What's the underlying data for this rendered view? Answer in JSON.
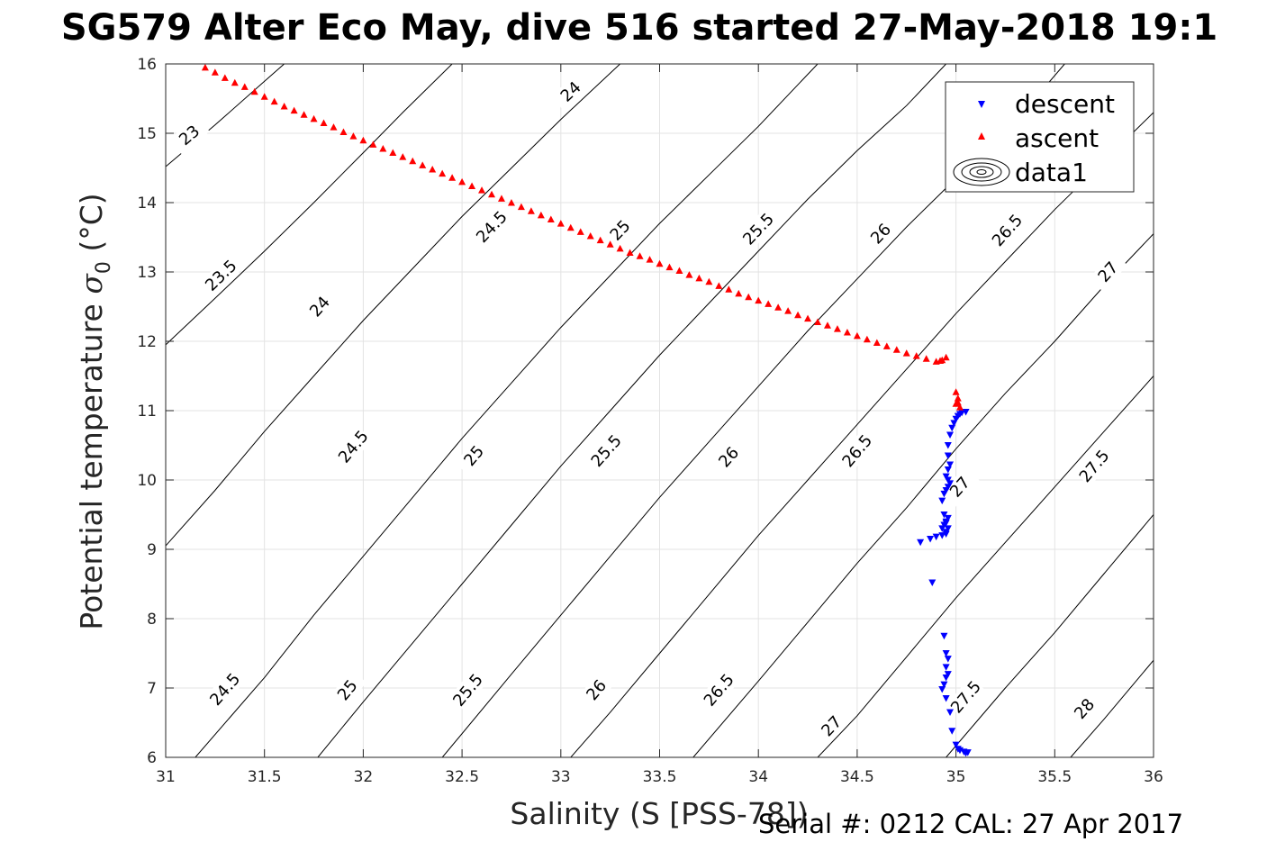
{
  "chart_data": {
    "type": "scatter",
    "title": "SG579 Alter Eco May, dive 516 started 27-May-2018 19:1",
    "xlabel": "Salinity (S [PSS-78])",
    "ylabel": "Potential temperature σ₀ (°C)",
    "ylabel_main": "Potential temperature ",
    "ylabel_sigma": "σ",
    "ylabel_sub": "0",
    "ylabel_unit": " (°C)",
    "xlim": [
      31,
      36
    ],
    "ylim": [
      6,
      16
    ],
    "xticks": [
      31,
      31.5,
      32,
      32.5,
      33,
      33.5,
      34,
      34.5,
      35,
      35.5,
      36
    ],
    "yticks": [
      6,
      7,
      8,
      9,
      10,
      11,
      12,
      13,
      14,
      15,
      16
    ],
    "grid": true,
    "legend_position": "top-right",
    "series": [
      {
        "name": "descent",
        "marker": "triangle-down",
        "color": "#0000ff",
        "x": [
          35.05,
          35.03,
          35.02,
          35.01,
          35.0,
          34.99,
          34.98,
          34.97,
          34.96,
          34.96,
          34.97,
          34.96,
          34.95,
          34.96,
          34.97,
          34.96,
          34.95,
          34.94,
          34.93,
          34.94,
          34.95,
          34.96,
          34.95,
          34.94,
          34.93,
          34.96,
          34.95,
          34.95,
          34.93,
          34.9,
          34.87,
          34.82,
          34.88,
          34.94,
          34.95,
          34.96,
          34.95,
          34.96,
          34.95,
          34.94,
          34.93,
          34.95,
          34.97,
          34.98,
          35.0,
          35.01,
          35.02,
          35.04,
          35.06,
          35.05
        ],
        "y": [
          10.98,
          10.97,
          10.95,
          10.92,
          10.88,
          10.82,
          10.75,
          10.65,
          10.5,
          10.35,
          10.22,
          10.15,
          10.05,
          10.0,
          9.95,
          9.9,
          9.85,
          9.8,
          9.7,
          9.5,
          9.4,
          9.45,
          9.38,
          9.35,
          9.3,
          9.3,
          9.25,
          9.22,
          9.2,
          9.18,
          9.15,
          9.1,
          8.52,
          7.75,
          7.5,
          7.42,
          7.3,
          7.2,
          7.15,
          7.05,
          6.98,
          6.85,
          6.65,
          6.38,
          6.18,
          6.12,
          6.1,
          6.08,
          6.07,
          6.06
        ]
      },
      {
        "name": "ascent",
        "marker": "triangle-up",
        "color": "#ff0000",
        "x": [
          31.2,
          31.25,
          31.3,
          31.35,
          31.4,
          31.45,
          31.5,
          31.55,
          31.6,
          31.65,
          31.7,
          31.75,
          31.8,
          31.85,
          31.9,
          31.95,
          32.0,
          32.05,
          32.1,
          32.15,
          32.2,
          32.25,
          32.3,
          32.35,
          32.4,
          32.45,
          32.5,
          32.55,
          32.6,
          32.65,
          32.7,
          32.75,
          32.8,
          32.85,
          32.9,
          32.95,
          33.0,
          33.05,
          33.1,
          33.15,
          33.2,
          33.25,
          33.3,
          33.35,
          33.4,
          33.45,
          33.5,
          33.55,
          33.6,
          33.65,
          33.7,
          33.75,
          33.8,
          33.85,
          33.9,
          33.95,
          34.0,
          34.05,
          34.1,
          34.15,
          34.2,
          34.25,
          34.3,
          34.35,
          34.4,
          34.45,
          34.5,
          34.55,
          34.6,
          34.65,
          34.7,
          34.75,
          34.8,
          34.85,
          34.9,
          34.93,
          34.95,
          34.92,
          35.0,
          35.01,
          35.0,
          35.02,
          35.01
        ],
        "y": [
          15.95,
          15.88,
          15.8,
          15.73,
          15.67,
          15.6,
          15.53,
          15.46,
          15.39,
          15.33,
          15.27,
          15.21,
          15.15,
          15.09,
          15.02,
          14.96,
          14.9,
          14.84,
          14.78,
          14.72,
          14.66,
          14.6,
          14.54,
          14.48,
          14.42,
          14.36,
          14.3,
          14.24,
          14.18,
          14.12,
          14.06,
          14.0,
          13.94,
          13.88,
          13.82,
          13.76,
          13.7,
          13.64,
          13.58,
          13.52,
          13.46,
          13.4,
          13.34,
          13.28,
          13.23,
          13.18,
          13.12,
          13.07,
          13.02,
          12.96,
          12.91,
          12.86,
          12.8,
          12.75,
          12.69,
          12.64,
          12.59,
          12.54,
          12.49,
          12.44,
          12.38,
          12.33,
          12.28,
          12.23,
          12.18,
          12.13,
          12.08,
          12.03,
          11.98,
          11.93,
          11.88,
          11.83,
          11.79,
          11.75,
          11.71,
          11.73,
          11.77,
          11.72,
          11.27,
          11.18,
          11.1,
          11.05,
          11.12
        ]
      },
      {
        "name": "data1",
        "type": "contour",
        "color": "#000000",
        "levels": [
          {
            "value": 23,
            "label": "23",
            "points": [
              [
                31.0,
                14.52
              ],
              [
                31.25,
                15.12
              ],
              [
                31.5,
                15.75
              ],
              [
                31.6,
                16.0
              ]
            ],
            "label_positions": [
              [
                31.12,
                14.97
              ]
            ]
          },
          {
            "value": 23.5,
            "label": "23.5",
            "points": [
              [
                31.0,
                11.95
              ],
              [
                31.25,
                12.62
              ],
              [
                31.5,
                13.3
              ],
              [
                31.75,
                14.0
              ],
              [
                32.0,
                14.72
              ],
              [
                32.2,
                15.3
              ],
              [
                32.45,
                16.0
              ]
            ],
            "label_positions": [
              [
                31.28,
                12.95
              ]
            ]
          },
          {
            "value": 24,
            "label": "24",
            "points": [
              [
                31.0,
                9.05
              ],
              [
                31.25,
                9.85
              ],
              [
                31.5,
                10.7
              ],
              [
                31.75,
                11.5
              ],
              [
                32.0,
                12.3
              ],
              [
                32.25,
                13.05
              ],
              [
                32.5,
                13.8
              ],
              [
                32.75,
                14.5
              ],
              [
                33.0,
                15.2
              ],
              [
                33.3,
                16.0
              ]
            ],
            "label_positions": [
              [
                31.78,
                12.5
              ],
              [
                33.05,
                15.6
              ]
            ]
          },
          {
            "value": 24.5,
            "label": "24.5",
            "points": [
              [
                31.15,
                6.0
              ],
              [
                31.5,
                7.15
              ],
              [
                31.75,
                8.05
              ],
              [
                32.0,
                8.9
              ],
              [
                32.25,
                9.75
              ],
              [
                32.5,
                10.6
              ],
              [
                32.75,
                11.4
              ],
              [
                33.0,
                12.2
              ],
              [
                33.25,
                12.95
              ],
              [
                33.5,
                13.7
              ],
              [
                33.75,
                14.4
              ],
              [
                34.0,
                15.1
              ],
              [
                34.3,
                16.0
              ]
            ],
            "label_positions": [
              [
                31.3,
                6.98
              ],
              [
                31.95,
                10.48
              ],
              [
                32.65,
                13.65
              ]
            ]
          },
          {
            "value": 25,
            "label": "25",
            "points": [
              [
                31.77,
                6.0
              ],
              [
                32.0,
                6.8
              ],
              [
                32.25,
                7.65
              ],
              [
                32.5,
                8.5
              ],
              [
                32.75,
                9.35
              ],
              [
                33.0,
                10.2
              ],
              [
                33.25,
                11.0
              ],
              [
                33.5,
                11.8
              ],
              [
                33.75,
                12.55
              ],
              [
                34.0,
                13.3
              ],
              [
                34.25,
                14.05
              ],
              [
                34.5,
                14.75
              ],
              [
                34.75,
                15.4
              ],
              [
                34.95,
                16.0
              ]
            ],
            "label_positions": [
              [
                31.92,
                6.97
              ],
              [
                32.56,
                10.35
              ],
              [
                33.3,
                13.6
              ]
            ]
          },
          {
            "value": 25.5,
            "label": "25.5",
            "points": [
              [
                32.4,
                6.0
              ],
              [
                32.75,
                7.2
              ],
              [
                33.0,
                8.05
              ],
              [
                33.25,
                8.9
              ],
              [
                33.5,
                9.75
              ],
              [
                33.75,
                10.55
              ],
              [
                34.0,
                11.35
              ],
              [
                34.25,
                12.15
              ],
              [
                34.5,
                12.9
              ],
              [
                34.75,
                13.65
              ],
              [
                35.0,
                14.35
              ],
              [
                35.25,
                15.0
              ],
              [
                35.55,
                16.0
              ]
            ],
            "label_positions": [
              [
                32.53,
                6.97
              ],
              [
                33.23,
                10.42
              ],
              [
                34.0,
                13.62
              ]
            ]
          },
          {
            "value": 26,
            "label": "26",
            "points": [
              [
                33.05,
                6.0
              ],
              [
                33.25,
                6.65
              ],
              [
                33.5,
                7.5
              ],
              [
                33.75,
                8.35
              ],
              [
                34.0,
                9.2
              ],
              [
                34.25,
                10.0
              ],
              [
                34.5,
                10.8
              ],
              [
                34.75,
                11.6
              ],
              [
                35.0,
                12.4
              ],
              [
                35.25,
                13.15
              ],
              [
                35.5,
                13.9
              ],
              [
                35.75,
                14.6
              ],
              [
                36.0,
                15.3
              ]
            ],
            "label_positions": [
              [
                33.18,
                6.97
              ],
              [
                33.85,
                10.33
              ],
              [
                34.62,
                13.55
              ]
            ]
          },
          {
            "value": 26.5,
            "label": "26.5",
            "points": [
              [
                33.67,
                6.0
              ],
              [
                34.0,
                7.1
              ],
              [
                34.25,
                7.95
              ],
              [
                34.5,
                8.8
              ],
              [
                34.75,
                9.6
              ],
              [
                35.0,
                10.45
              ],
              [
                35.25,
                11.25
              ],
              [
                35.5,
                12.0
              ],
              [
                35.75,
                12.8
              ],
              [
                36.0,
                13.55
              ]
            ],
            "label_positions": [
              [
                33.8,
                6.97
              ],
              [
                34.5,
                10.42
              ],
              [
                35.26,
                13.6
              ]
            ]
          },
          {
            "value": 27,
            "label": "27",
            "points": [
              [
                34.3,
                6.0
              ],
              [
                34.5,
                6.6
              ],
              [
                34.75,
                7.45
              ],
              [
                35.0,
                8.3
              ],
              [
                35.25,
                9.1
              ],
              [
                35.5,
                9.9
              ],
              [
                35.75,
                10.7
              ],
              [
                36.0,
                11.5
              ]
            ],
            "label_positions": [
              [
                34.37,
                6.45
              ],
              [
                35.02,
                9.9
              ],
              [
                35.77,
                13.0
              ]
            ]
          },
          {
            "value": 27.5,
            "label": "27.5",
            "points": [
              [
                34.95,
                6.0
              ],
              [
                35.25,
                7.0
              ],
              [
                35.5,
                7.8
              ],
              [
                35.75,
                8.65
              ],
              [
                36.0,
                9.5
              ]
            ],
            "label_positions": [
              [
                35.05,
                6.87
              ],
              [
                35.7,
                10.2
              ]
            ]
          },
          {
            "value": 28,
            "label": "28",
            "points": [
              [
                35.58,
                6.0
              ],
              [
                35.75,
                6.55
              ],
              [
                36.0,
                7.4
              ]
            ],
            "label_positions": [
              [
                35.65,
                6.7
              ]
            ]
          }
        ]
      }
    ]
  },
  "footer": {
    "serial_text": "Serial #: 0212  CAL: 27 Apr 2017"
  }
}
